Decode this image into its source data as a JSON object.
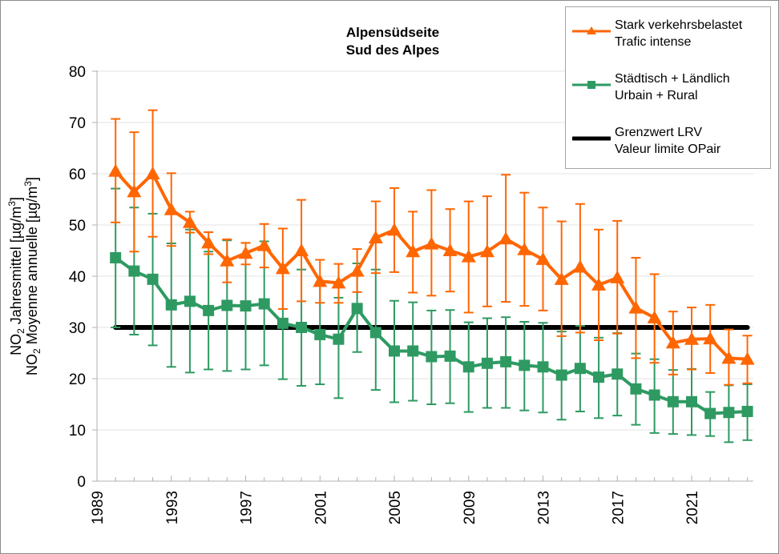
{
  "chart_data": {
    "type": "line",
    "title": [
      "Alpensüdseite",
      "Sud des Alpes"
    ],
    "xlabel": "",
    "ylabel": [
      {
        "prefix": "NO",
        "sub": "2",
        "text": " Jahresmittel [µg/m",
        "sup": "3",
        "suffix": "]"
      },
      {
        "prefix": "NO",
        "sub": "2",
        "text": " Moyenne annuelle [µg/m",
        "sup": "3",
        "suffix": "]"
      }
    ],
    "xlim": [
      1989,
      2025
    ],
    "ylim": [
      0,
      80
    ],
    "x_ticks": [
      1989,
      1993,
      1997,
      2001,
      2005,
      2009,
      2013,
      2017,
      2021
    ],
    "y_ticks": [
      0,
      10,
      20,
      30,
      40,
      50,
      60,
      70,
      80
    ],
    "grid": true,
    "legend_position": "top-right",
    "x": [
      1990,
      1991,
      1992,
      1993,
      1994,
      1995,
      1996,
      1997,
      1998,
      1999,
      2000,
      2001,
      2002,
      2003,
      2004,
      2005,
      2006,
      2007,
      2008,
      2009,
      2010,
      2011,
      2012,
      2013,
      2014,
      2015,
      2016,
      2017,
      2018,
      2019,
      2020,
      2021,
      2022,
      2023,
      2024
    ],
    "series": [
      {
        "name": "Stark verkehrsbelastet / Trafic intense",
        "legend": [
          "Stark verkehrsbelastet",
          "Trafic intense"
        ],
        "color": "#ff6600",
        "marker": "triangle",
        "values": [
          60.5,
          56.5,
          60.0,
          53.0,
          50.5,
          46.5,
          43.0,
          44.5,
          46.0,
          41.5,
          45.0,
          39.0,
          38.7,
          41.0,
          47.5,
          49.0,
          44.8,
          46.3,
          45.0,
          43.8,
          44.8,
          47.3,
          45.2,
          43.3,
          39.4,
          41.8,
          38.3,
          39.7,
          33.8,
          31.9,
          27.0,
          27.7,
          27.8,
          24.0,
          23.8
        ],
        "error_upper": [
          70.7,
          68.1,
          72.4,
          60.1,
          52.6,
          48.6,
          47.2,
          46.5,
          50.2,
          49.3,
          54.9,
          43.2,
          42.4,
          45.3,
          54.6,
          57.2,
          52.6,
          56.8,
          53.1,
          54.6,
          55.6,
          59.8,
          56.3,
          53.4,
          50.7,
          54.1,
          49.1,
          50.8,
          43.6,
          40.4,
          33.1,
          33.9,
          34.4,
          29.6,
          28.4
        ],
        "error_lower": [
          50.5,
          44.8,
          47.7,
          45.9,
          48.5,
          44.3,
          38.8,
          42.3,
          41.7,
          33.6,
          35.1,
          34.8,
          34.8,
          36.9,
          40.6,
          40.8,
          36.8,
          36.2,
          37.0,
          32.9,
          34.1,
          35.0,
          34.2,
          33.3,
          28.3,
          29.0,
          27.5,
          28.8,
          24.0,
          23.1,
          20.8,
          21.8,
          21.1,
          18.8,
          19.1
        ]
      },
      {
        "name": "Städtisch + Ländlich / Urbain + Rural",
        "legend": [
          "Städtisch + Ländlich",
          "Urbain + Rural"
        ],
        "color": "#2e9a62",
        "marker": "square",
        "values": [
          43.6,
          41.0,
          39.4,
          34.4,
          35.1,
          33.3,
          34.3,
          34.2,
          34.6,
          30.8,
          30.0,
          28.6,
          27.7,
          33.7,
          29.0,
          25.4,
          25.4,
          24.3,
          24.4,
          22.3,
          23.0,
          23.3,
          22.6,
          22.3,
          20.7,
          22.0,
          20.3,
          20.9,
          18.0,
          16.8,
          15.5,
          15.5,
          13.2,
          13.4,
          13.6
        ],
        "error_upper": [
          57.1,
          53.4,
          52.2,
          46.4,
          49.1,
          44.8,
          47.0,
          46.5,
          46.8,
          41.2,
          41.3,
          38.7,
          35.8,
          42.5,
          41.3,
          35.2,
          34.9,
          33.3,
          33.4,
          31.0,
          31.8,
          32.0,
          31.1,
          30.9,
          29.2,
          30.3,
          28.0,
          28.9,
          24.9,
          23.8,
          21.7,
          21.9,
          17.4,
          18.7,
          18.9
        ],
        "error_lower": [
          30.0,
          28.6,
          26.5,
          22.3,
          21.2,
          21.8,
          21.5,
          21.8,
          22.6,
          19.9,
          18.6,
          18.9,
          16.2,
          25.2,
          17.8,
          15.4,
          15.7,
          15.0,
          15.2,
          13.5,
          14.3,
          14.3,
          13.8,
          13.4,
          12.0,
          13.6,
          12.3,
          12.8,
          11.0,
          9.4,
          9.2,
          9.0,
          8.8,
          7.6,
          8.0
        ]
      },
      {
        "name": "Grenzwert LRV / Valeur limite OPair",
        "legend": [
          "Grenzwert LRV",
          "Valeur limite OPair"
        ],
        "color": "#000000",
        "marker": "none",
        "x_range": [
          1990,
          2024
        ],
        "constant_value": 30
      }
    ]
  }
}
